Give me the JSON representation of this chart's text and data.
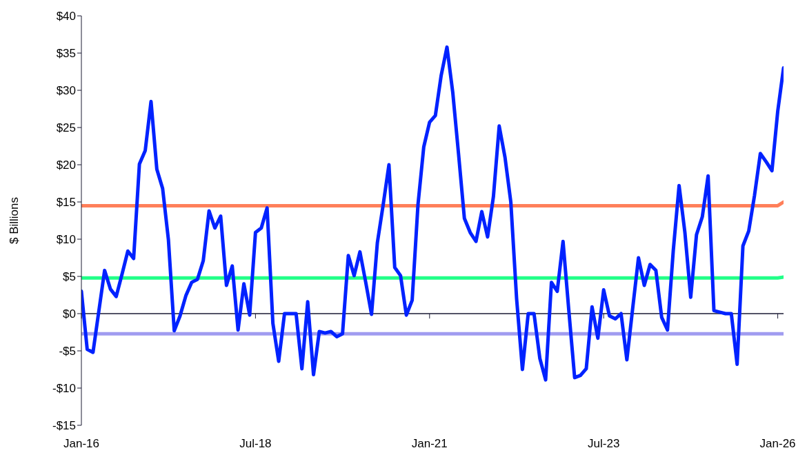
{
  "chart_data": {
    "type": "line",
    "ylabel": "$ Billions",
    "x": [
      "2016-01",
      "2016-02",
      "2016-03",
      "2016-04",
      "2016-05",
      "2016-06",
      "2016-07",
      "2016-08",
      "2016-09",
      "2016-10",
      "2016-11",
      "2016-12",
      "2017-01",
      "2017-02",
      "2017-03",
      "2017-04",
      "2017-05",
      "2017-06",
      "2017-07",
      "2017-08",
      "2017-09",
      "2017-10",
      "2017-11",
      "2017-12",
      "2018-01",
      "2018-02",
      "2018-03",
      "2018-04",
      "2018-05",
      "2018-06",
      "2018-07",
      "2018-08",
      "2018-09",
      "2018-10",
      "2018-11",
      "2018-12",
      "2019-01",
      "2019-02",
      "2019-03",
      "2019-04",
      "2019-05",
      "2019-06",
      "2019-07",
      "2019-08",
      "2019-09",
      "2019-10",
      "2019-11",
      "2019-12",
      "2020-01",
      "2020-02",
      "2020-03",
      "2020-04",
      "2020-05",
      "2020-06",
      "2020-07",
      "2020-08",
      "2020-09",
      "2020-10",
      "2020-11",
      "2020-12",
      "2021-01",
      "2021-02",
      "2021-03",
      "2021-04",
      "2021-05",
      "2021-06",
      "2021-07",
      "2021-08",
      "2021-09",
      "2021-10",
      "2021-11",
      "2021-12",
      "2022-01",
      "2022-02",
      "2022-03",
      "2022-04",
      "2022-05",
      "2022-06",
      "2022-07",
      "2022-08",
      "2022-09",
      "2022-10",
      "2022-11",
      "2022-12",
      "2023-01",
      "2023-02",
      "2023-03",
      "2023-04",
      "2023-05",
      "2023-06",
      "2023-07",
      "2023-08",
      "2023-09",
      "2023-10",
      "2023-11",
      "2023-12",
      "2024-01",
      "2024-02",
      "2024-03",
      "2024-04",
      "2024-05",
      "2024-06",
      "2024-07",
      "2024-08",
      "2024-09",
      "2024-10",
      "2024-11",
      "2024-12",
      "2025-01",
      "2025-02",
      "2025-03",
      "2025-04",
      "2025-05",
      "2025-06",
      "2025-07",
      "2025-08",
      "2025-09",
      "2025-10",
      "2025-11",
      "2025-12",
      "2026-01",
      "2026-02"
    ],
    "series": [
      {
        "color": "#ff7f5a",
        "values": [
          14.5,
          14.5,
          14.5,
          14.5,
          14.5,
          14.5,
          14.5,
          14.5,
          14.5,
          14.5,
          14.5,
          14.5,
          14.5,
          14.5,
          14.5,
          14.5,
          14.5,
          14.5,
          14.5,
          14.5,
          14.5,
          14.5,
          14.5,
          14.5,
          14.5,
          14.5,
          14.5,
          14.5,
          14.5,
          14.5,
          14.5,
          14.5,
          14.5,
          14.5,
          14.5,
          14.5,
          14.5,
          14.5,
          14.5,
          14.5,
          14.5,
          14.5,
          14.5,
          14.5,
          14.5,
          14.5,
          14.5,
          14.5,
          14.5,
          14.5,
          14.5,
          14.5,
          14.5,
          14.5,
          14.5,
          14.5,
          14.5,
          14.5,
          14.5,
          14.5,
          14.5,
          14.5,
          14.5,
          14.5,
          14.5,
          14.5,
          14.5,
          14.5,
          14.5,
          14.5,
          14.5,
          14.5,
          14.5,
          14.5,
          14.5,
          14.5,
          14.5,
          14.5,
          14.5,
          14.5,
          14.5,
          14.5,
          14.5,
          14.5,
          14.5,
          14.5,
          14.5,
          14.5,
          14.5,
          14.5,
          14.5,
          14.5,
          14.5,
          14.5,
          14.5,
          14.5,
          14.5,
          14.5,
          14.5,
          14.5,
          14.5,
          14.5,
          14.5,
          14.5,
          14.5,
          14.5,
          14.5,
          14.5,
          14.5,
          14.5,
          14.5,
          14.5,
          14.5,
          14.5,
          14.5,
          14.5,
          14.5,
          14.5,
          14.5,
          14.5,
          14.5,
          15.0
        ]
      },
      {
        "color": "#22ff88",
        "values": [
          4.8,
          4.8,
          4.8,
          4.8,
          4.8,
          4.8,
          4.8,
          4.8,
          4.8,
          4.8,
          4.8,
          4.8,
          4.8,
          4.8,
          4.8,
          4.8,
          4.8,
          4.8,
          4.8,
          4.8,
          4.8,
          4.8,
          4.8,
          4.8,
          4.8,
          4.8,
          4.8,
          4.8,
          4.8,
          4.8,
          4.8,
          4.8,
          4.8,
          4.8,
          4.8,
          4.8,
          4.8,
          4.8,
          4.8,
          4.8,
          4.8,
          4.8,
          4.8,
          4.8,
          4.8,
          4.8,
          4.8,
          4.8,
          4.8,
          4.8,
          4.8,
          4.8,
          4.8,
          4.8,
          4.8,
          4.8,
          4.8,
          4.8,
          4.8,
          4.8,
          4.8,
          4.8,
          4.8,
          4.8,
          4.8,
          4.8,
          4.8,
          4.8,
          4.8,
          4.8,
          4.8,
          4.8,
          4.8,
          4.8,
          4.8,
          4.8,
          4.8,
          4.8,
          4.8,
          4.8,
          4.8,
          4.8,
          4.8,
          4.8,
          4.8,
          4.8,
          4.8,
          4.8,
          4.8,
          4.8,
          4.8,
          4.8,
          4.8,
          4.8,
          4.8,
          4.8,
          4.8,
          4.8,
          4.8,
          4.8,
          4.8,
          4.8,
          4.8,
          4.8,
          4.8,
          4.8,
          4.8,
          4.8,
          4.8,
          4.8,
          4.8,
          4.8,
          4.8,
          4.8,
          4.8,
          4.8,
          4.8,
          4.8,
          4.8,
          4.8,
          4.8,
          4.9
        ]
      },
      {
        "color": "#a09cf0",
        "values": [
          -2.7,
          -2.7,
          -2.7,
          -2.7,
          -2.7,
          -2.7,
          -2.7,
          -2.7,
          -2.7,
          -2.7,
          -2.7,
          -2.7,
          -2.7,
          -2.7,
          -2.7,
          -2.7,
          -2.7,
          -2.7,
          -2.7,
          -2.7,
          -2.7,
          -2.7,
          -2.7,
          -2.7,
          -2.7,
          -2.7,
          -2.7,
          -2.7,
          -2.7,
          -2.7,
          -2.7,
          -2.7,
          -2.7,
          -2.7,
          -2.7,
          -2.7,
          -2.7,
          -2.7,
          -2.7,
          -2.7,
          -2.7,
          -2.7,
          -2.7,
          -2.7,
          -2.7,
          -2.7,
          -2.7,
          -2.7,
          -2.7,
          -2.7,
          -2.7,
          -2.7,
          -2.7,
          -2.7,
          -2.7,
          -2.7,
          -2.7,
          -2.7,
          -2.7,
          -2.7,
          -2.7,
          -2.7,
          -2.7,
          -2.7,
          -2.7,
          -2.7,
          -2.7,
          -2.7,
          -2.7,
          -2.7,
          -2.7,
          -2.7,
          -2.7,
          -2.7,
          -2.7,
          -2.7,
          -2.7,
          -2.7,
          -2.7,
          -2.7,
          -2.7,
          -2.7,
          -2.7,
          -2.7,
          -2.7,
          -2.7,
          -2.7,
          -2.7,
          -2.7,
          -2.7,
          -2.7,
          -2.7,
          -2.7,
          -2.7,
          -2.7,
          -2.7,
          -2.7,
          -2.7,
          -2.7,
          -2.7,
          -2.7,
          -2.7,
          -2.7,
          -2.7,
          -2.7,
          -2.7,
          -2.7,
          -2.7,
          -2.7,
          -2.7,
          -2.7,
          -2.7,
          -2.7,
          -2.7,
          -2.7,
          -2.7,
          -2.7,
          -2.7,
          -2.7,
          -2.7,
          -2.7,
          -2.7
        ]
      },
      {
        "color": "#0022ff",
        "values": [
          3.0,
          -4.8,
          -5.2,
          0.3,
          5.8,
          3.3,
          2.3,
          5.3,
          8.4,
          7.4,
          20.1,
          21.9,
          28.5,
          19.4,
          16.8,
          9.9,
          -2.3,
          -0.3,
          2.4,
          4.2,
          4.6,
          7.1,
          13.8,
          11.5,
          13.1,
          3.8,
          6.4,
          -2.2,
          4.0,
          -0.2,
          10.9,
          11.5,
          14.2,
          -1.3,
          -6.4,
          0,
          0,
          0,
          -7.4,
          1.6,
          -8.2,
          -2.4,
          -2.6,
          -2.4,
          -3.1,
          -2.7,
          7.8,
          5.1,
          8.3,
          4.2,
          -0.1,
          9.5,
          14.6,
          20.0,
          6.2,
          5.1,
          -0.2,
          1.8,
          14.6,
          22.4,
          25.7,
          26.6,
          32.0,
          35.8,
          29.7,
          21.4,
          12.8,
          10.9,
          9.7,
          13.7,
          10.3,
          15.7,
          25.2,
          21.0,
          15.0,
          2.0,
          -7.5,
          0,
          0,
          -6.0,
          -8.9,
          4.2,
          3.0,
          9.7,
          0.4,
          -8.6,
          -8.3,
          -7.4,
          0.9,
          -3.3,
          3.2,
          -0.3,
          -0.7,
          0,
          -6.2,
          0.7,
          7.5,
          3.8,
          6.6,
          5.8,
          -0.5,
          -2.2,
          8.5,
          17.2,
          10.9,
          2.2,
          10.6,
          13.0,
          18.5,
          0.4,
          0.2,
          0,
          0,
          -6.8,
          9.1,
          11.1,
          15.9,
          21.5,
          20.4,
          19.2,
          27.2,
          33.0
        ]
      }
    ],
    "xlim": [
      "2016-01",
      "2026-02"
    ],
    "xticks": [
      {
        "value": "2016-01",
        "label": "Jan-16"
      },
      {
        "value": "2018-07",
        "label": "Jul-18"
      },
      {
        "value": "2021-01",
        "label": "Jan-21"
      },
      {
        "value": "2023-07",
        "label": "Jul-23"
      },
      {
        "value": "2026-01",
        "label": "Jan-26"
      }
    ],
    "ylim": [
      -15,
      40
    ],
    "yticks": [
      {
        "value": -15,
        "label": "-$15"
      },
      {
        "value": -10,
        "label": "-$10"
      },
      {
        "value": -5,
        "label": "-$5"
      },
      {
        "value": 0,
        "label": "$0"
      },
      {
        "value": 5,
        "label": "$5"
      },
      {
        "value": 10,
        "label": "$10"
      },
      {
        "value": 15,
        "label": "$15"
      },
      {
        "value": 20,
        "label": "$20"
      },
      {
        "value": 25,
        "label": "$25"
      },
      {
        "value": 30,
        "label": "$30"
      },
      {
        "value": 35,
        "label": "$35"
      },
      {
        "value": 40,
        "label": "$40"
      }
    ],
    "marker": "none",
    "line_style": "solid"
  }
}
